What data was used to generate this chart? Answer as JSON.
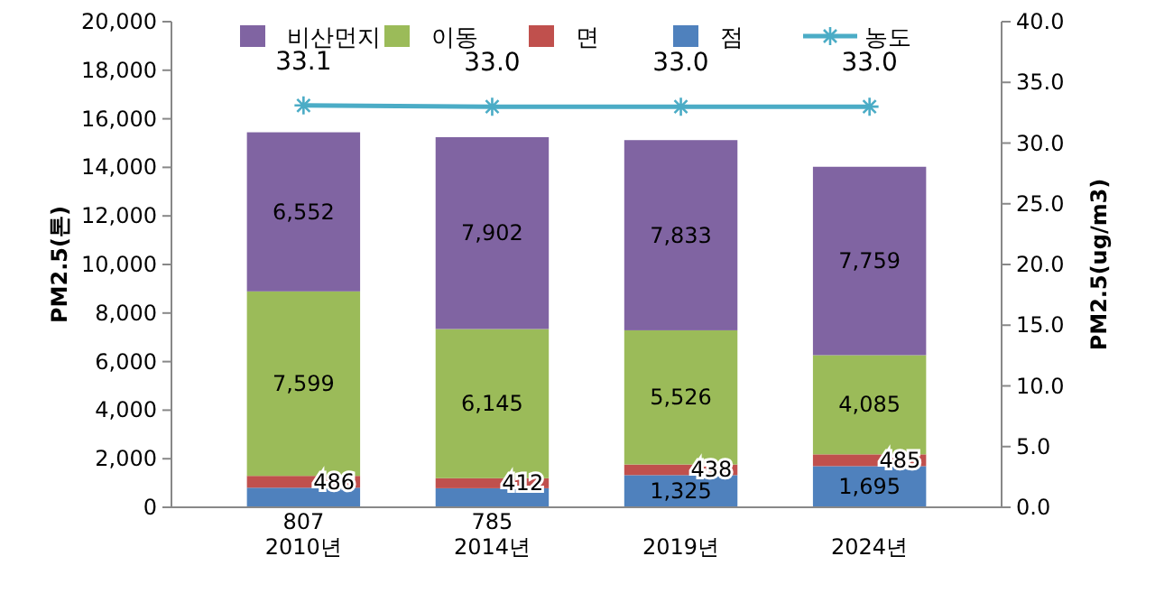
{
  "chart_data": {
    "type": "bar",
    "stacked": true,
    "categories": [
      "2010년",
      "2014년",
      "2019년",
      "2024년"
    ],
    "series": [
      {
        "name": "점",
        "color": "#4f81bd",
        "values": [
          807,
          785,
          1325,
          1695
        ],
        "value_labels": [
          "807",
          "785",
          "1,325",
          "1,695"
        ]
      },
      {
        "name": "면",
        "color": "#c0504d",
        "values": [
          486,
          412,
          438,
          485
        ],
        "value_labels": [
          "486",
          "412",
          "438",
          "485"
        ]
      },
      {
        "name": "이동",
        "color": "#9bbb59",
        "values": [
          7599,
          6145,
          5526,
          4085
        ],
        "value_labels": [
          "7,599",
          "6,145",
          "5,526",
          "4,085"
        ]
      },
      {
        "name": "비산먼지",
        "color": "#8064a2",
        "values": [
          6552,
          7902,
          7833,
          7759
        ],
        "value_labels": [
          "6,552",
          "7,902",
          "7,833",
          "7,759"
        ]
      },
      {
        "name": "농도",
        "type": "line",
        "axis": "y2",
        "color": "#4bacc6",
        "marker": "cross",
        "values": [
          33.1,
          33.0,
          33.0,
          33.0
        ],
        "value_labels": [
          "33.1",
          "33.0",
          "33.0",
          "33.0"
        ]
      }
    ],
    "ylabel": "PM2.5(톤)",
    "y2label": "PM2.5(ug/m3)",
    "ylim": [
      0,
      20000
    ],
    "yticks": [
      0,
      {
        "value": 2000,
        "label": "2,000"
      },
      {
        "value": 4000,
        "label": "4,000"
      },
      {
        "value": 6000,
        "label": "6,000"
      },
      {
        "value": 8000,
        "label": "8,000"
      },
      {
        "value": 10000,
        "label": "10,000"
      },
      {
        "value": 12000,
        "label": "12,000"
      },
      {
        "value": 14000,
        "label": "14,000"
      },
      {
        "value": 16000,
        "label": "16,000"
      },
      {
        "value": 18000,
        "label": "18,000"
      },
      {
        "value": 20000,
        "label": "20,000"
      }
    ],
    "y2lim": [
      0,
      40
    ],
    "y2ticks": [
      {
        "value": 0,
        "label": "0.0"
      },
      {
        "value": 5,
        "label": "5.0"
      },
      {
        "value": 10,
        "label": "10.0"
      },
      {
        "value": 15,
        "label": "15.0"
      },
      {
        "value": 20,
        "label": "20.0"
      },
      {
        "value": 25,
        "label": "25.0"
      },
      {
        "value": 30,
        "label": "30.0"
      },
      {
        "value": 35,
        "label": "35.0"
      },
      {
        "value": 40,
        "label": "40.0"
      }
    ],
    "legend": "top",
    "grid": false
  }
}
